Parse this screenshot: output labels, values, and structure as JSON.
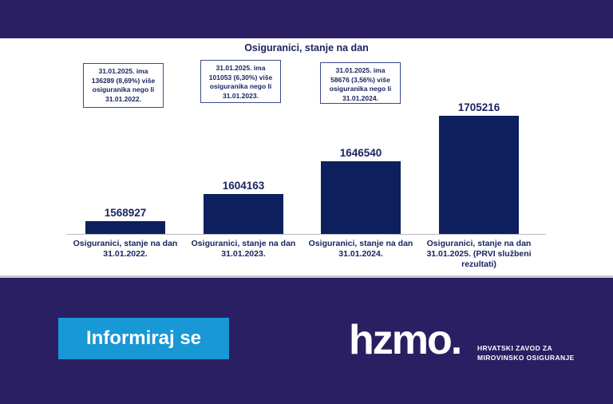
{
  "chart_data": {
    "type": "bar",
    "title": "Osiguranici, stanje na dan",
    "categories": [
      "Osiguranici, stanje na dan\n31.01.2022.",
      "Osiguranici, stanje na dan\n31.01.2023.",
      "Osiguranici, stanje na dan\n31.01.2024.",
      "Osiguranici, stanje na dan\n31.01.2025. (PRVI službeni\nrezultati)"
    ],
    "values": [
      1568927,
      1604163,
      1646540,
      1705216
    ],
    "value_labels": [
      "1568927",
      "1604163",
      "1646540",
      "1705216"
    ],
    "annotations": [
      "31.01.2025. ima\n136289 (8,69%) više\nosiguranika nego li\n31.01.2022.",
      "31.01.2025. ima\n101053  (6,30%) više\nosiguranika nego li\n31.01.2023.",
      "31.01.2025. ima\n58676 (3,56%) više\nosiguranika nego li\n31.01.2024."
    ],
    "xlabel": "",
    "ylabel": "",
    "grid": false,
    "legend": "none",
    "bar_color": "#0d1f5c"
  },
  "cta": {
    "label": "Informiraj se"
  },
  "logo": {
    "wordmark": "hzmo.",
    "line1": "HRVATSKI ZAVOD ZA",
    "line2": "MIROVINSKO OSIGURANJE"
  },
  "colors": {
    "background": "#2a1f63",
    "cta": "#1898d5",
    "text": "#1a2560"
  }
}
